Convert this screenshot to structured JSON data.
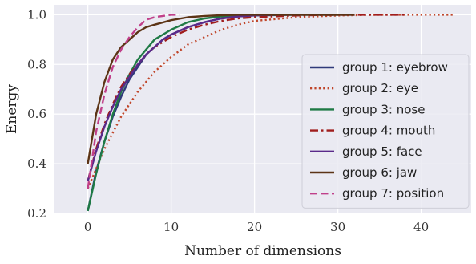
{
  "chart_data": {
    "type": "line",
    "xlabel": "Number of dimensions",
    "ylabel": "Energy",
    "xlim": [
      -4,
      46
    ],
    "ylim": [
      0.2,
      1.04
    ],
    "xticks": [
      0,
      10,
      20,
      30,
      40
    ],
    "yticks": [
      0.2,
      0.4,
      0.6,
      0.8,
      1.0
    ],
    "xtick_labels": [
      "0",
      "10",
      "20",
      "30",
      "40"
    ],
    "ytick_labels": [
      "0.2",
      "0.4",
      "0.6",
      "0.8",
      "1.0"
    ],
    "grid": true,
    "background": "#eaeaf2",
    "legend_position": "right",
    "series": [
      {
        "name": "group 1: eyebrow",
        "color": "#2f3a7a",
        "dash": "solid",
        "x": [
          0,
          1,
          2,
          3,
          4,
          5,
          6,
          7,
          8,
          9,
          10,
          12,
          14,
          16,
          18,
          20,
          25,
          30,
          32
        ],
        "y": [
          0.21,
          0.37,
          0.49,
          0.59,
          0.67,
          0.74,
          0.79,
          0.84,
          0.87,
          0.9,
          0.92,
          0.95,
          0.97,
          0.985,
          0.993,
          0.997,
          1.0,
          1.0,
          1.0
        ]
      },
      {
        "name": "group 2: eye",
        "color": "#c0462a",
        "dash": "dotted",
        "x": [
          0,
          2,
          4,
          6,
          8,
          10,
          12,
          14,
          16,
          18,
          20,
          25,
          30,
          35,
          40,
          44
        ],
        "y": [
          0.3,
          0.46,
          0.59,
          0.69,
          0.77,
          0.83,
          0.88,
          0.91,
          0.94,
          0.96,
          0.975,
          0.99,
          0.997,
          1.0,
          1.0,
          1.0
        ]
      },
      {
        "name": "group 3: nose",
        "color": "#1f7a45",
        "dash": "solid",
        "x": [
          0,
          1,
          2,
          3,
          4,
          5,
          6,
          7,
          8,
          9,
          10,
          12,
          14,
          16,
          18,
          20,
          25,
          30
        ],
        "y": [
          0.21,
          0.36,
          0.49,
          0.6,
          0.69,
          0.76,
          0.82,
          0.86,
          0.9,
          0.92,
          0.94,
          0.97,
          0.985,
          0.993,
          0.997,
          1.0,
          1.0,
          1.0
        ]
      },
      {
        "name": "group 4: mouth",
        "color": "#a01d1d",
        "dash": "dashdot",
        "x": [
          0,
          1,
          2,
          3,
          4,
          5,
          6,
          7,
          8,
          10,
          12,
          14,
          16,
          18,
          20,
          25,
          30,
          35,
          38
        ],
        "y": [
          0.33,
          0.46,
          0.56,
          0.64,
          0.71,
          0.76,
          0.8,
          0.84,
          0.87,
          0.91,
          0.94,
          0.96,
          0.975,
          0.985,
          0.99,
          0.997,
          1.0,
          1.0,
          1.0
        ]
      },
      {
        "name": "group 5: face",
        "color": "#5a2a8a",
        "dash": "solid",
        "x": [
          0,
          1,
          2,
          3,
          4,
          5,
          6,
          7,
          8,
          9,
          10,
          12,
          14,
          16,
          18,
          20,
          22
        ],
        "y": [
          0.33,
          0.45,
          0.55,
          0.63,
          0.7,
          0.75,
          0.8,
          0.84,
          0.87,
          0.9,
          0.92,
          0.95,
          0.97,
          0.985,
          0.993,
          0.998,
          1.0
        ]
      },
      {
        "name": "group 6: jaw",
        "color": "#5c3416",
        "dash": "solid",
        "x": [
          0,
          1,
          2,
          3,
          4,
          5,
          6,
          7,
          8,
          10,
          12,
          14,
          16,
          18,
          20,
          25,
          30,
          32
        ],
        "y": [
          0.4,
          0.6,
          0.73,
          0.82,
          0.87,
          0.9,
          0.93,
          0.95,
          0.96,
          0.978,
          0.99,
          0.995,
          0.998,
          1.0,
          1.0,
          1.0,
          1.0,
          1.0
        ]
      },
      {
        "name": "group 7: position",
        "color": "#c0408a",
        "dash": "dashed",
        "x": [
          0,
          1,
          2,
          3,
          4,
          5,
          6,
          7,
          8,
          9,
          10,
          11
        ],
        "y": [
          0.3,
          0.53,
          0.68,
          0.79,
          0.86,
          0.91,
          0.95,
          0.98,
          0.99,
          0.995,
          1.0,
          1.0
        ]
      }
    ]
  }
}
